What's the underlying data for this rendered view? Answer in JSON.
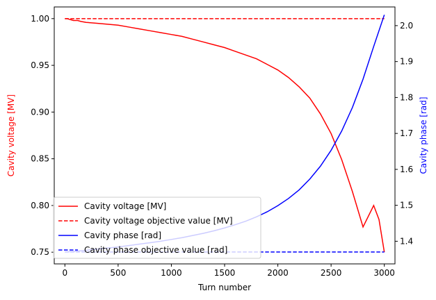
{
  "chart_data": {
    "type": "line",
    "xlabel": "Turn number",
    "ylabel_left": "Cavity voltage [MV]",
    "ylabel_right": "Cavity phase [rad]",
    "xlim": [
      -100,
      3100
    ],
    "ylim_left": [
      0.7375,
      1.0125
    ],
    "ylim_right": [
      1.337,
      2.052
    ],
    "xticks": [
      0,
      500,
      1000,
      1500,
      2000,
      2500,
      3000
    ],
    "yticks_left": [
      0.75,
      0.8,
      0.85,
      0.9,
      0.95,
      1.0
    ],
    "yticks_right": [
      1.4,
      1.5,
      1.6,
      1.7,
      1.8,
      1.9,
      2.0
    ],
    "grid": false,
    "legend": {
      "position": "lower-left",
      "entries": [
        "Cavity voltage [MV]",
        "Cavity voltage objective value [MV]",
        "Cavity phase [rad]",
        "Cavity phase objective value [rad]"
      ]
    },
    "series": [
      {
        "name": "Cavity voltage [MV]",
        "axis": "left",
        "color": "#ff0000",
        "style": "solid",
        "x": [
          0,
          20,
          50,
          80,
          120,
          150,
          200,
          300,
          400,
          500,
          600,
          700,
          800,
          900,
          1000,
          1100,
          1200,
          1300,
          1400,
          1500,
          1600,
          1700,
          1800,
          1900,
          2000,
          2100,
          2200,
          2300,
          2400,
          2500,
          2600,
          2700,
          2800,
          2900,
          2950,
          3000
        ],
        "y": [
          1.0,
          1.0,
          0.999,
          0.998,
          0.998,
          0.997,
          0.996,
          0.995,
          0.994,
          0.993,
          0.991,
          0.989,
          0.987,
          0.985,
          0.983,
          0.981,
          0.978,
          0.975,
          0.972,
          0.969,
          0.965,
          0.961,
          0.957,
          0.951,
          0.945,
          0.937,
          0.927,
          0.915,
          0.898,
          0.877,
          0.849,
          0.815,
          0.777,
          0.8,
          0.785,
          0.75
        ]
      },
      {
        "name": "Cavity voltage objective value [MV]",
        "axis": "left",
        "color": "#ff0000",
        "style": "dashed",
        "x": [
          0,
          3000
        ],
        "y": [
          1.0,
          1.0
        ]
      },
      {
        "name": "Cavity phase [rad]",
        "axis": "right",
        "color": "#0000ff",
        "style": "solid",
        "x": [
          0,
          100,
          200,
          300,
          400,
          500,
          600,
          700,
          800,
          900,
          1000,
          1100,
          1200,
          1300,
          1400,
          1500,
          1600,
          1700,
          1800,
          1900,
          2000,
          2100,
          2200,
          2300,
          2400,
          2500,
          2600,
          2700,
          2800,
          2900,
          3000
        ],
        "y": [
          1.37,
          1.372,
          1.375,
          1.378,
          1.381,
          1.384,
          1.388,
          1.392,
          1.396,
          1.4,
          1.405,
          1.41,
          1.416,
          1.422,
          1.429,
          1.437,
          1.446,
          1.456,
          1.468,
          1.482,
          1.499,
          1.519,
          1.543,
          1.573,
          1.609,
          1.653,
          1.707,
          1.772,
          1.851,
          1.942,
          2.03
        ]
      },
      {
        "name": "Cavity phase objective value [rad]",
        "axis": "right",
        "color": "#0000ff",
        "style": "dashed",
        "x": [
          0,
          3000
        ],
        "y": [
          1.37,
          1.37
        ]
      }
    ]
  }
}
